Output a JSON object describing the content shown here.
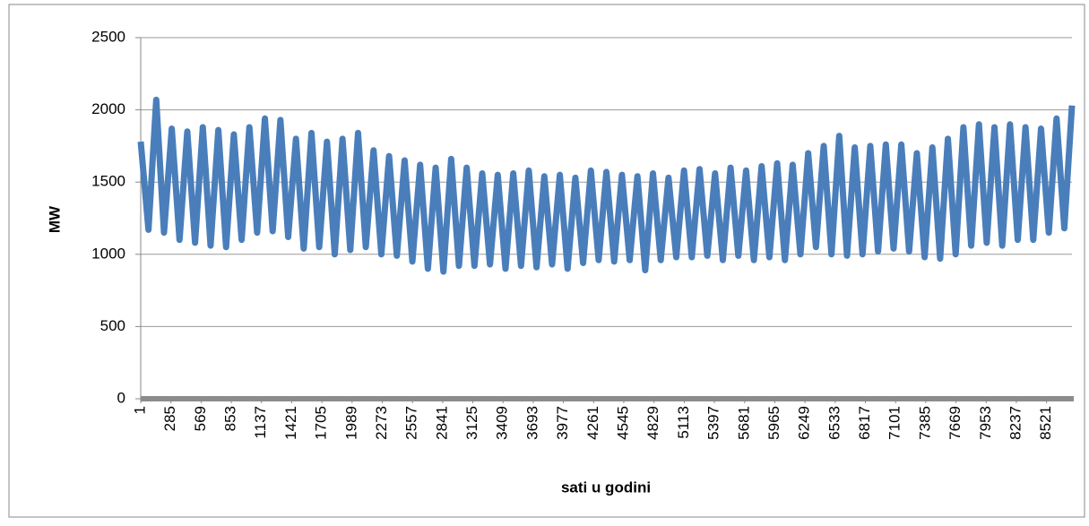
{
  "chart_data": {
    "type": "line",
    "x_label": "sati u godini",
    "y_label": "MW",
    "xlim": [
      1,
      8760
    ],
    "xticks": [
      1,
      285,
      569,
      853,
      1137,
      1421,
      1705,
      1989,
      2273,
      2557,
      2841,
      3125,
      3409,
      3693,
      3977,
      4261,
      4545,
      4829,
      5113,
      5397,
      5681,
      5965,
      6249,
      6533,
      6817,
      7101,
      7385,
      7669,
      7953,
      8237,
      8521
    ],
    "ylim": [
      0,
      2500
    ],
    "yticks": [
      0,
      500,
      1000,
      1500,
      2000,
      2500
    ],
    "grid": true,
    "series": [
      {
        "color": "#4a7ebb",
        "x": [
          1,
          74,
          147,
          220,
          293,
          366,
          439,
          512,
          585,
          658,
          731,
          804,
          877,
          950,
          1023,
          1096,
          1169,
          1242,
          1315,
          1388,
          1461,
          1534,
          1607,
          1680,
          1753,
          1826,
          1899,
          1972,
          2045,
          2118,
          2191,
          2264,
          2337,
          2410,
          2483,
          2556,
          2629,
          2702,
          2775,
          2848,
          2921,
          2994,
          3067,
          3140,
          3213,
          3286,
          3359,
          3432,
          3505,
          3578,
          3651,
          3724,
          3797,
          3870,
          3943,
          4016,
          4089,
          4162,
          4235,
          4308,
          4381,
          4454,
          4527,
          4600,
          4673,
          4746,
          4819,
          4892,
          4965,
          5038,
          5111,
          5184,
          5257,
          5330,
          5403,
          5476,
          5549,
          5622,
          5695,
          5768,
          5841,
          5914,
          5987,
          6060,
          6133,
          6206,
          6279,
          6352,
          6425,
          6498,
          6571,
          6644,
          6717,
          6790,
          6863,
          6936,
          7009,
          7082,
          7155,
          7228,
          7301,
          7374,
          7447,
          7520,
          7593,
          7666,
          7739,
          7812,
          7885,
          7958,
          8031,
          8104,
          8177,
          8250,
          8323,
          8396,
          8469,
          8542,
          8615,
          8688,
          8760
        ],
        "values": [
          1780,
          1170,
          2070,
          1150,
          1870,
          1100,
          1850,
          1080,
          1880,
          1060,
          1860,
          1050,
          1830,
          1100,
          1880,
          1150,
          1940,
          1160,
          1930,
          1120,
          1800,
          1040,
          1840,
          1050,
          1780,
          1000,
          1800,
          1030,
          1840,
          1050,
          1720,
          1000,
          1680,
          990,
          1650,
          950,
          1620,
          900,
          1600,
          880,
          1660,
          920,
          1600,
          920,
          1560,
          930,
          1550,
          900,
          1560,
          920,
          1580,
          910,
          1540,
          930,
          1550,
          900,
          1530,
          940,
          1580,
          960,
          1570,
          950,
          1550,
          960,
          1540,
          890,
          1560,
          960,
          1530,
          980,
          1580,
          980,
          1590,
          990,
          1560,
          960,
          1600,
          990,
          1580,
          960,
          1610,
          980,
          1630,
          960,
          1620,
          1000,
          1700,
          1050,
          1750,
          1000,
          1820,
          990,
          1740,
          1000,
          1750,
          1020,
          1760,
          1040,
          1760,
          1020,
          1700,
          980,
          1740,
          970,
          1800,
          1000,
          1880,
          1060,
          1900,
          1080,
          1880,
          1060,
          1900,
          1100,
          1880,
          1100,
          1870,
          1150,
          1940,
          1180,
          2030
        ]
      }
    ]
  }
}
